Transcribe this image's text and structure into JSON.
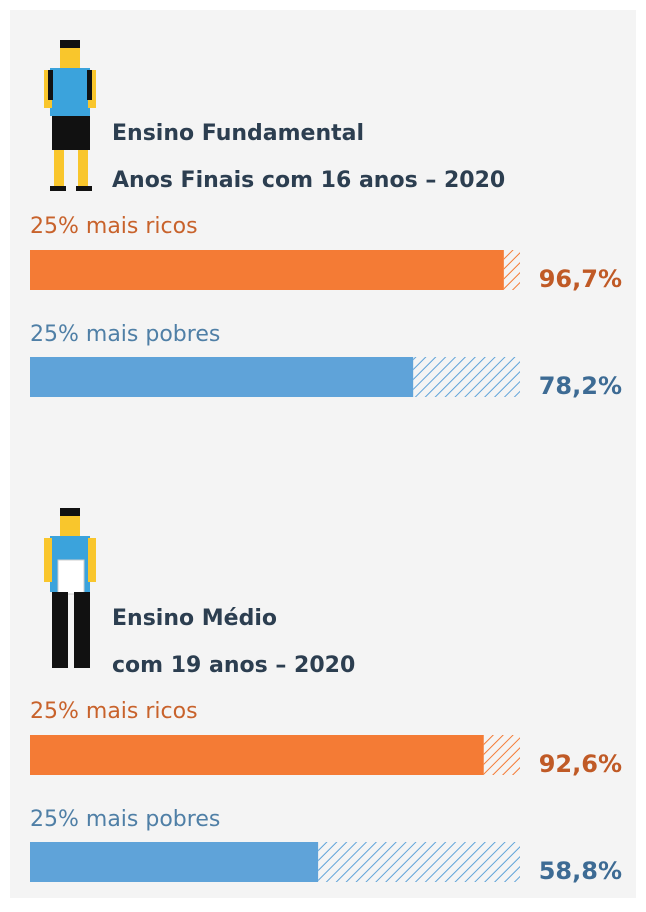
{
  "chart_data": [
    {
      "type": "bar",
      "title": "Ensino Fundamental",
      "subtitle": "Anos Finais com 16 anos – 2020",
      "categories": [
        "25% mais ricos",
        "25% mais pobres"
      ],
      "values": [
        96.7,
        78.2
      ],
      "value_labels": [
        "96,7%",
        "78,2%"
      ],
      "colors": [
        "#f47b35",
        "#5fa3d9"
      ],
      "xlim": [
        0,
        100
      ]
    },
    {
      "type": "bar",
      "title": "Ensino Médio",
      "subtitle": "com 19 anos – 2020",
      "categories": [
        "25% mais ricos",
        "25% mais pobres"
      ],
      "values": [
        92.6,
        58.8
      ],
      "value_labels": [
        "92,6%",
        "58,8%"
      ],
      "colors": [
        "#f47b35",
        "#5fa3d9"
      ],
      "xlim": [
        0,
        100
      ]
    }
  ]
}
